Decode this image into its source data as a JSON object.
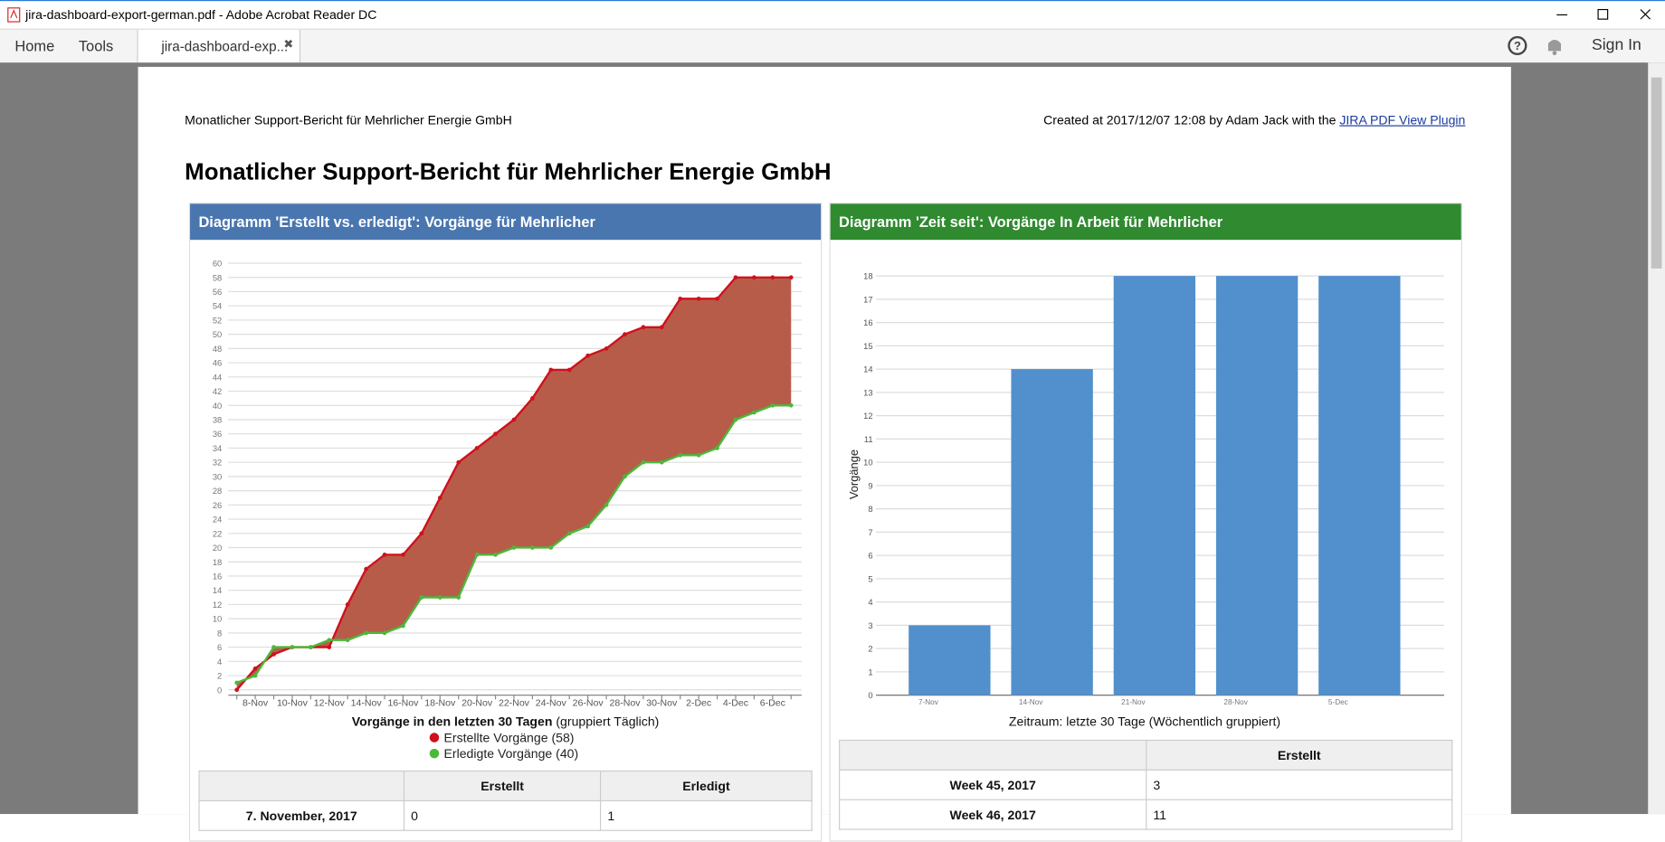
{
  "window": {
    "title": "jira-dashboard-export-german.pdf - Adobe Acrobat Reader DC"
  },
  "toolbar": {
    "home": "Home",
    "tools": "Tools",
    "tab": "jira-dashboard-exp...",
    "sign_in": "Sign In"
  },
  "document": {
    "header_left": "Monatlicher Support-Bericht für Mehrlicher Energie GmbH",
    "header_right": "Created at 2017/12/07 12:08 by Adam Jack with the",
    "link": "JIRA PDF View Plugin",
    "heading": "Monatlicher Support-Bericht für Mehrlicher Energie GmbH",
    "panels": [
      {
        "title": "Diagramm 'Erstellt vs. erledigt': Vorgänge für Mehrlicher"
      },
      {
        "title": "Diagramm 'Zeit seit': Vorgänge In Arbeit für Mehrlicher"
      }
    ],
    "tables": [
      {
        "header": [
          "Erstellt",
          "Erledigt"
        ],
        "rows": [
          [
            "7. November, 2017",
            "0",
            "1"
          ]
        ]
      },
      {
        "header": [
          "Erstellt"
        ],
        "rows": [
          [
            "Week 45, 2017",
            "3"
          ],
          [
            "Week 46, 2017",
            "11"
          ]
        ]
      }
    ]
  },
  "chart_data": [
    {
      "type": "line",
      "fill_between": true,
      "fill_color": "#b85c4a",
      "xlabel": "Vorgänge in den letzten 30 Tagen",
      "xlabel_note": "(gruppiert Täglich)",
      "categories": [
        null,
        "8-Nov",
        null,
        "10-Nov",
        null,
        "12-Nov",
        null,
        "14-Nov",
        null,
        "16-Nov",
        null,
        "18-Nov",
        null,
        "20-Nov",
        null,
        "22-Nov",
        null,
        "24-Nov",
        null,
        "26-Nov",
        null,
        "28-Nov",
        null,
        "30-Nov",
        null,
        "2-Dec",
        null,
        "4-Dec",
        null,
        "6-Dec",
        null
      ],
      "series": [
        {
          "name": "Erstellte Vorgänge (58)",
          "color": "#d0101c",
          "values": [
            0,
            3,
            5,
            6,
            6,
            6,
            12,
            17,
            19,
            19,
            22,
            27,
            32,
            34,
            36,
            38,
            41,
            45,
            45,
            47,
            48,
            50,
            51,
            51,
            55,
            55,
            55,
            58,
            58,
            58,
            58
          ]
        },
        {
          "name": "Erledigte Vorgänge (40)",
          "color": "#4cb83a",
          "values": [
            1,
            2,
            6,
            6,
            6,
            7,
            7,
            8,
            8,
            9,
            13,
            13,
            13,
            19,
            19,
            20,
            20,
            20,
            22,
            23,
            26,
            30,
            32,
            32,
            33,
            33,
            34,
            38,
            39,
            40,
            40
          ]
        }
      ],
      "ylim": [
        0,
        60
      ],
      "yticks": [
        0,
        2,
        4,
        6,
        8,
        10,
        12,
        14,
        16,
        18,
        20,
        22,
        24,
        26,
        28,
        30,
        32,
        34,
        36,
        38,
        40,
        42,
        44,
        46,
        48,
        50,
        52,
        54,
        56,
        58,
        60
      ],
      "grid": true
    },
    {
      "type": "bar",
      "xlabel": "Zeitraum: letzte 30 Tage (Wöchentlich gruppiert)",
      "ylabel": "Vorgänge",
      "categories": [
        "7-Nov",
        "14-Nov",
        "21-Nov",
        "28-Nov",
        "5-Dec"
      ],
      "values": [
        3,
        14,
        18,
        18,
        18
      ],
      "color": "#5190cc",
      "ylim": [
        0,
        18
      ],
      "yticks": [
        0,
        1,
        2,
        3,
        4,
        5,
        6,
        7,
        8,
        9,
        10,
        11,
        12,
        13,
        14,
        15,
        16,
        17,
        18
      ],
      "grid": true
    }
  ]
}
